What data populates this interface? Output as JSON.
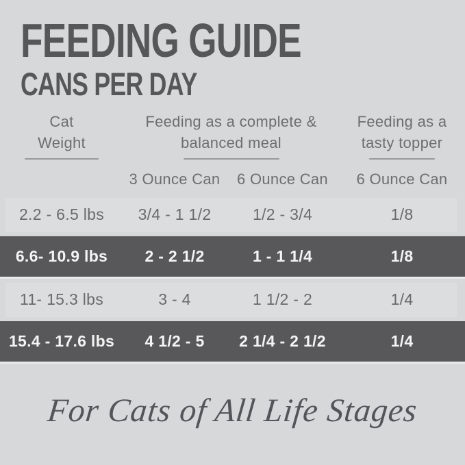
{
  "title": {
    "line1": "FEEDING GUIDE",
    "line2": "CANS PER DAY"
  },
  "table": {
    "column_groups": [
      {
        "id": "cat-weight",
        "line1": "Cat",
        "line2": "Weight"
      },
      {
        "id": "complete-meal",
        "line1": "Feeding as a complete &",
        "line2": "balanced meal"
      },
      {
        "id": "tasty-topper",
        "line1": "Feeding as a",
        "line2": "tasty topper"
      }
    ],
    "subheaders": {
      "complete_3oz": "3 Ounce Can",
      "complete_6oz": "6 Ounce Can",
      "topper_6oz": "6 Ounce Can"
    },
    "rows": [
      {
        "weight": "2.2 - 6.5 lbs",
        "complete_3oz": "3/4 - 1 1/2",
        "complete_6oz": "1/2 - 3/4",
        "topper_6oz": "1/8",
        "highlighted": false
      },
      {
        "weight": "6.6- 10.9 lbs",
        "complete_3oz": "2 - 2 1/2",
        "complete_6oz": "1 - 1 1/4",
        "topper_6oz": "1/8",
        "highlighted": true
      },
      {
        "weight": "11- 15.3 lbs",
        "complete_3oz": "3 - 4",
        "complete_6oz": "1 1/2 - 2",
        "topper_6oz": "1/4",
        "highlighted": false
      },
      {
        "weight": "15.4 - 17.6 lbs",
        "complete_3oz": "4 1/2 - 5",
        "complete_6oz": "2 1/4 - 2 1/2",
        "topper_6oz": "1/4",
        "highlighted": true
      }
    ]
  },
  "footer": {
    "tagline": "For Cats of All Life Stages"
  },
  "colors": {
    "page_background": "#d7d8d9",
    "light_row_background": "#dcddde",
    "dark_row_background": "#58585a",
    "title_text": "#565759",
    "header_text": "#6d6e70",
    "light_row_text": "#6a6b6d",
    "dark_row_text": "#f4f4f4",
    "underline": "#98999b",
    "tagline_text": "#545559"
  },
  "chart_data": {
    "type": "table",
    "title": "FEEDING GUIDE — CANS PER DAY",
    "columns": [
      "Cat Weight",
      "Complete meal: 3 Ounce Can",
      "Complete meal: 6 Ounce Can",
      "Tasty topper: 6 Ounce Can"
    ],
    "rows": [
      [
        "2.2 - 6.5 lbs",
        "3/4 - 1 1/2",
        "1/2 - 3/4",
        "1/8"
      ],
      [
        "6.6- 10.9 lbs",
        "2 - 2 1/2",
        "1 - 1 1/4",
        "1/8"
      ],
      [
        "11- 15.3 lbs",
        "3 - 4",
        "1 1/2 - 2",
        "1/4"
      ],
      [
        "15.4 - 17.6 lbs",
        "4 1/2 - 5",
        "2 1/4 - 2 1/2",
        "1/4"
      ]
    ]
  }
}
